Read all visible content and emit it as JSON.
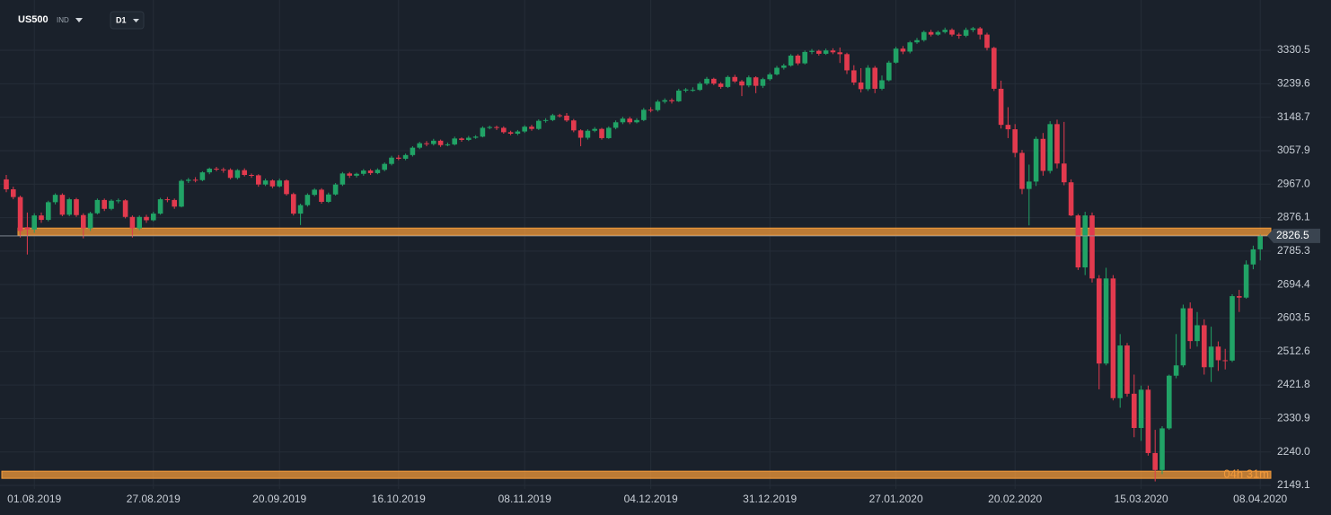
{
  "header": {
    "symbol": "US500",
    "symbol_type": "IND",
    "timeframe": "D1"
  },
  "chart_data": {
    "type": "candlestick",
    "up_color": "#21a366",
    "down_color": "#e23a4e",
    "level_color": "#f39a3a",
    "grid": true,
    "ylim": [
      2139.4,
      3467
    ],
    "yticks": [
      3330.5,
      3239.6,
      3148.7,
      3057.9,
      {
        "value": 2967,
        "label": "2967.0"
      },
      2876.1,
      2785.3,
      2694.4,
      2603.5,
      2512.6,
      2421.8,
      2330.9,
      {
        "value": 2240,
        "label": "2240.0"
      },
      2149.1
    ],
    "last_price": 2826.5,
    "levels": [
      2838,
      2178
    ],
    "countdown": "04h 31m",
    "categories": [
      null,
      null,
      null,
      null,
      "01.08.2019",
      null,
      null,
      null,
      null,
      null,
      null,
      null,
      null,
      null,
      null,
      null,
      null,
      null,
      null,
      null,
      null,
      "27.08.2019",
      null,
      null,
      null,
      null,
      null,
      null,
      null,
      null,
      null,
      null,
      null,
      null,
      null,
      null,
      null,
      null,
      null,
      "20.09.2019",
      null,
      null,
      null,
      null,
      null,
      null,
      null,
      null,
      null,
      null,
      null,
      null,
      null,
      null,
      null,
      null,
      "16.10.2019",
      null,
      null,
      null,
      null,
      null,
      null,
      null,
      null,
      null,
      null,
      null,
      null,
      null,
      null,
      null,
      null,
      null,
      "08.11.2019",
      null,
      null,
      null,
      null,
      null,
      null,
      null,
      null,
      null,
      null,
      null,
      null,
      null,
      null,
      null,
      null,
      null,
      "04.12.2019",
      null,
      null,
      null,
      null,
      null,
      null,
      null,
      null,
      null,
      null,
      null,
      null,
      null,
      null,
      null,
      null,
      "31.12.2019",
      null,
      null,
      null,
      null,
      null,
      null,
      null,
      null,
      null,
      null,
      null,
      null,
      null,
      null,
      null,
      null,
      null,
      "27.01.2020",
      null,
      null,
      null,
      null,
      null,
      null,
      null,
      null,
      null,
      null,
      null,
      null,
      null,
      null,
      null,
      null,
      "20.02.2020",
      null,
      null,
      null,
      null,
      null,
      null,
      null,
      null,
      null,
      null,
      null,
      null,
      null,
      null,
      null,
      null,
      null,
      "15.03.2020",
      null,
      null,
      null,
      null,
      null,
      null,
      null,
      null,
      null,
      null,
      null,
      null,
      null,
      null,
      null,
      null,
      "08.04.2020"
    ],
    "candles": [
      [
        2980,
        2992,
        2945,
        2953
      ],
      [
        2953,
        2960,
        2926,
        2932
      ],
      [
        2932,
        2936,
        2822,
        2840
      ],
      [
        2850,
        2890,
        2776,
        2844
      ],
      [
        2844,
        2888,
        2835,
        2882
      ],
      [
        2882,
        2890,
        2862,
        2870
      ],
      [
        2870,
        2922,
        2866,
        2918
      ],
      [
        2918,
        2942,
        2912,
        2938
      ],
      [
        2938,
        2942,
        2880,
        2884
      ],
      [
        2884,
        2930,
        2880,
        2926
      ],
      [
        2926,
        2930,
        2878,
        2883
      ],
      [
        2883,
        2888,
        2820,
        2847
      ],
      [
        2847,
        2892,
        2840,
        2888
      ],
      [
        2888,
        2928,
        2885,
        2924
      ],
      [
        2924,
        2928,
        2894,
        2900
      ],
      [
        2900,
        2926,
        2896,
        2922
      ],
      [
        2922,
        2928,
        2915,
        2923
      ],
      [
        2923,
        2926,
        2874,
        2878
      ],
      [
        2878,
        2882,
        2822,
        2847
      ],
      [
        2847,
        2882,
        2842,
        2878
      ],
      [
        2878,
        2884,
        2862,
        2869
      ],
      [
        2869,
        2892,
        2866,
        2887
      ],
      [
        2887,
        2930,
        2884,
        2926
      ],
      [
        2926,
        2932,
        2918,
        2924
      ],
      [
        2924,
        2928,
        2900,
        2906
      ],
      [
        2906,
        2980,
        2904,
        2976
      ],
      [
        2976,
        2984,
        2970,
        2979
      ],
      [
        2979,
        2986,
        2972,
        2978
      ],
      [
        2978,
        3002,
        2975,
        2999
      ],
      [
        2999,
        3012,
        2994,
        3009
      ],
      [
        3009,
        3014,
        3002,
        3007
      ],
      [
        3007,
        3012,
        2998,
        3006
      ],
      [
        3006,
        3010,
        2980,
        2984
      ],
      [
        2984,
        3008,
        2980,
        3005
      ],
      [
        3005,
        3010,
        2988,
        2992
      ],
      [
        2992,
        2996,
        2984,
        2991
      ],
      [
        2991,
        2994,
        2960,
        2966
      ],
      [
        2966,
        2982,
        2962,
        2977
      ],
      [
        2977,
        2980,
        2956,
        2961
      ],
      [
        2961,
        2982,
        2958,
        2977
      ],
      [
        2977,
        2980,
        2936,
        2940
      ],
      [
        2940,
        2944,
        2882,
        2887
      ],
      [
        2887,
        2914,
        2856,
        2910
      ],
      [
        2910,
        2942,
        2906,
        2938
      ],
      [
        2938,
        2956,
        2934,
        2952
      ],
      [
        2952,
        2956,
        2914,
        2919
      ],
      [
        2919,
        2944,
        2916,
        2939
      ],
      [
        2939,
        2970,
        2936,
        2966
      ],
      [
        2966,
        3000,
        2962,
        2996
      ],
      [
        2996,
        3000,
        2984,
        2990
      ],
      [
        2990,
        2998,
        2985,
        2995
      ],
      [
        2995,
        3008,
        2990,
        3004
      ],
      [
        3004,
        3008,
        2992,
        2997
      ],
      [
        2997,
        3010,
        2994,
        3006
      ],
      [
        3006,
        3026,
        3002,
        3022
      ],
      [
        3022,
        3044,
        3018,
        3039
      ],
      [
        3039,
        3046,
        3032,
        3036
      ],
      [
        3036,
        3050,
        3032,
        3046
      ],
      [
        3046,
        3070,
        3042,
        3066
      ],
      [
        3066,
        3082,
        3062,
        3078
      ],
      [
        3078,
        3084,
        3070,
        3076
      ],
      [
        3076,
        3090,
        3072,
        3085
      ],
      [
        3085,
        3088,
        3068,
        3073
      ],
      [
        3073,
        3080,
        3070,
        3075
      ],
      [
        3075,
        3096,
        3072,
        3091
      ],
      [
        3091,
        3094,
        3082,
        3087
      ],
      [
        3087,
        3098,
        3084,
        3093
      ],
      [
        3093,
        3100,
        3090,
        3096
      ],
      [
        3096,
        3124,
        3094,
        3120
      ],
      [
        3120,
        3126,
        3116,
        3122
      ],
      [
        3122,
        3126,
        3114,
        3120
      ],
      [
        3120,
        3124,
        3104,
        3108
      ],
      [
        3108,
        3112,
        3100,
        3104
      ],
      [
        3104,
        3114,
        3100,
        3110
      ],
      [
        3110,
        3127,
        3106,
        3123
      ],
      [
        3123,
        3128,
        3112,
        3117
      ],
      [
        3117,
        3143,
        3114,
        3139
      ],
      [
        3139,
        3146,
        3134,
        3141
      ],
      [
        3141,
        3158,
        3138,
        3154
      ],
      [
        3154,
        3158,
        3148,
        3153
      ],
      [
        3153,
        3160,
        3136,
        3140
      ],
      [
        3140,
        3144,
        3108,
        3113
      ],
      [
        3113,
        3116,
        3070,
        3093
      ],
      [
        3093,
        3116,
        3088,
        3112
      ],
      [
        3112,
        3122,
        3108,
        3117
      ],
      [
        3117,
        3120,
        3088,
        3092
      ],
      [
        3092,
        3124,
        3090,
        3120
      ],
      [
        3120,
        3140,
        3116,
        3135
      ],
      [
        3135,
        3150,
        3130,
        3145
      ],
      [
        3145,
        3150,
        3130,
        3135
      ],
      [
        3135,
        3146,
        3132,
        3141
      ],
      [
        3141,
        3174,
        3138,
        3169
      ],
      [
        3169,
        3176,
        3162,
        3168
      ],
      [
        3168,
        3196,
        3164,
        3191
      ],
      [
        3191,
        3200,
        3186,
        3195
      ],
      [
        3195,
        3200,
        3186,
        3192
      ],
      [
        3192,
        3226,
        3190,
        3221
      ],
      [
        3221,
        3228,
        3216,
        3224
      ],
      [
        3223,
        3230,
        3218,
        3223
      ],
      [
        3223,
        3245,
        3220,
        3240
      ],
      [
        3240,
        3258,
        3236,
        3253
      ],
      [
        3253,
        3256,
        3236,
        3240
      ],
      [
        3240,
        3244,
        3226,
        3231
      ],
      [
        3231,
        3262,
        3228,
        3258
      ],
      [
        3258,
        3264,
        3242,
        3246
      ],
      [
        3246,
        3250,
        3206,
        3235
      ],
      [
        3235,
        3262,
        3230,
        3257
      ],
      [
        3257,
        3260,
        3214,
        3234
      ],
      [
        3234,
        3256,
        3228,
        3252
      ],
      [
        3252,
        3270,
        3248,
        3265
      ],
      [
        3265,
        3288,
        3262,
        3283
      ],
      [
        3283,
        3294,
        3278,
        3289
      ],
      [
        3289,
        3320,
        3286,
        3316
      ],
      [
        3316,
        3320,
        3290,
        3295
      ],
      [
        3295,
        3330,
        3292,
        3326
      ],
      [
        3326,
        3334,
        3320,
        3329
      ],
      [
        3329,
        3332,
        3316,
        3321
      ],
      [
        3321,
        3335,
        3318,
        3330
      ],
      [
        3330,
        3336,
        3320,
        3325
      ],
      [
        3325,
        3338,
        3296,
        3320
      ],
      [
        3320,
        3324,
        3266,
        3276
      ],
      [
        3276,
        3290,
        3236,
        3243
      ],
      [
        3243,
        3282,
        3216,
        3225
      ],
      [
        3225,
        3290,
        3220,
        3283
      ],
      [
        3283,
        3288,
        3214,
        3226
      ],
      [
        3226,
        3262,
        3222,
        3249
      ],
      [
        3249,
        3302,
        3246,
        3297
      ],
      [
        3297,
        3340,
        3294,
        3335
      ],
      [
        3335,
        3342,
        3320,
        3327
      ],
      [
        3327,
        3356,
        3322,
        3352
      ],
      [
        3352,
        3364,
        3348,
        3358
      ],
      [
        3358,
        3384,
        3354,
        3380
      ],
      [
        3380,
        3386,
        3368,
        3373
      ],
      [
        3373,
        3384,
        3370,
        3380
      ],
      [
        3380,
        3392,
        3376,
        3386
      ],
      [
        3386,
        3390,
        3368,
        3373
      ],
      [
        3373,
        3378,
        3362,
        3370
      ],
      [
        3370,
        3392,
        3366,
        3386
      ],
      [
        3386,
        3394,
        3380,
        3390
      ],
      [
        3390,
        3394,
        3360,
        3373
      ],
      [
        3373,
        3378,
        3330,
        3337
      ],
      [
        3337,
        3340,
        3220,
        3226
      ],
      [
        3226,
        3248,
        3118,
        3128
      ],
      [
        3128,
        3176,
        3092,
        3116
      ],
      [
        3116,
        3130,
        3040,
        3052
      ],
      [
        3052,
        3060,
        2940,
        2954
      ],
      [
        2954,
        3020,
        2855,
        2974
      ],
      [
        2974,
        3096,
        2962,
        3090
      ],
      [
        3090,
        3106,
        2990,
        3003
      ],
      [
        3003,
        3138,
        2996,
        3130
      ],
      [
        3130,
        3142,
        3010,
        3023
      ],
      [
        3023,
        3136,
        2964,
        2972
      ],
      [
        2972,
        2980,
        2880,
        2882
      ],
      [
        2882,
        2886,
        2734,
        2741
      ],
      [
        2741,
        2892,
        2720,
        2882
      ],
      [
        2882,
        2890,
        2700,
        2711
      ],
      [
        2711,
        2720,
        2410,
        2480
      ],
      [
        2480,
        2740,
        2475,
        2711
      ],
      [
        2711,
        2720,
        2380,
        2386
      ],
      [
        2386,
        2560,
        2360,
        2529
      ],
      [
        2529,
        2536,
        2390,
        2398
      ],
      [
        2398,
        2450,
        2280,
        2305
      ],
      [
        2305,
        2420,
        2270,
        2409
      ],
      [
        2409,
        2420,
        2230,
        2237
      ],
      [
        2237,
        2300,
        2160,
        2191
      ],
      [
        2191,
        2310,
        2180,
        2304
      ],
      [
        2304,
        2450,
        2300,
        2447
      ],
      [
        2447,
        2560,
        2440,
        2475
      ],
      [
        2475,
        2640,
        2470,
        2630
      ],
      [
        2630,
        2646,
        2520,
        2541
      ],
      [
        2541,
        2620,
        2526,
        2584
      ],
      [
        2584,
        2600,
        2450,
        2470
      ],
      [
        2470,
        2580,
        2430,
        2526
      ],
      [
        2526,
        2540,
        2460,
        2489
      ],
      [
        2489,
        2520,
        2464,
        2488
      ],
      [
        2488,
        2668,
        2484,
        2663
      ],
      [
        2663,
        2680,
        2620,
        2659
      ],
      [
        2659,
        2760,
        2656,
        2749
      ],
      [
        2749,
        2800,
        2736,
        2790
      ],
      [
        2790,
        2830,
        2760,
        2826
      ]
    ]
  }
}
